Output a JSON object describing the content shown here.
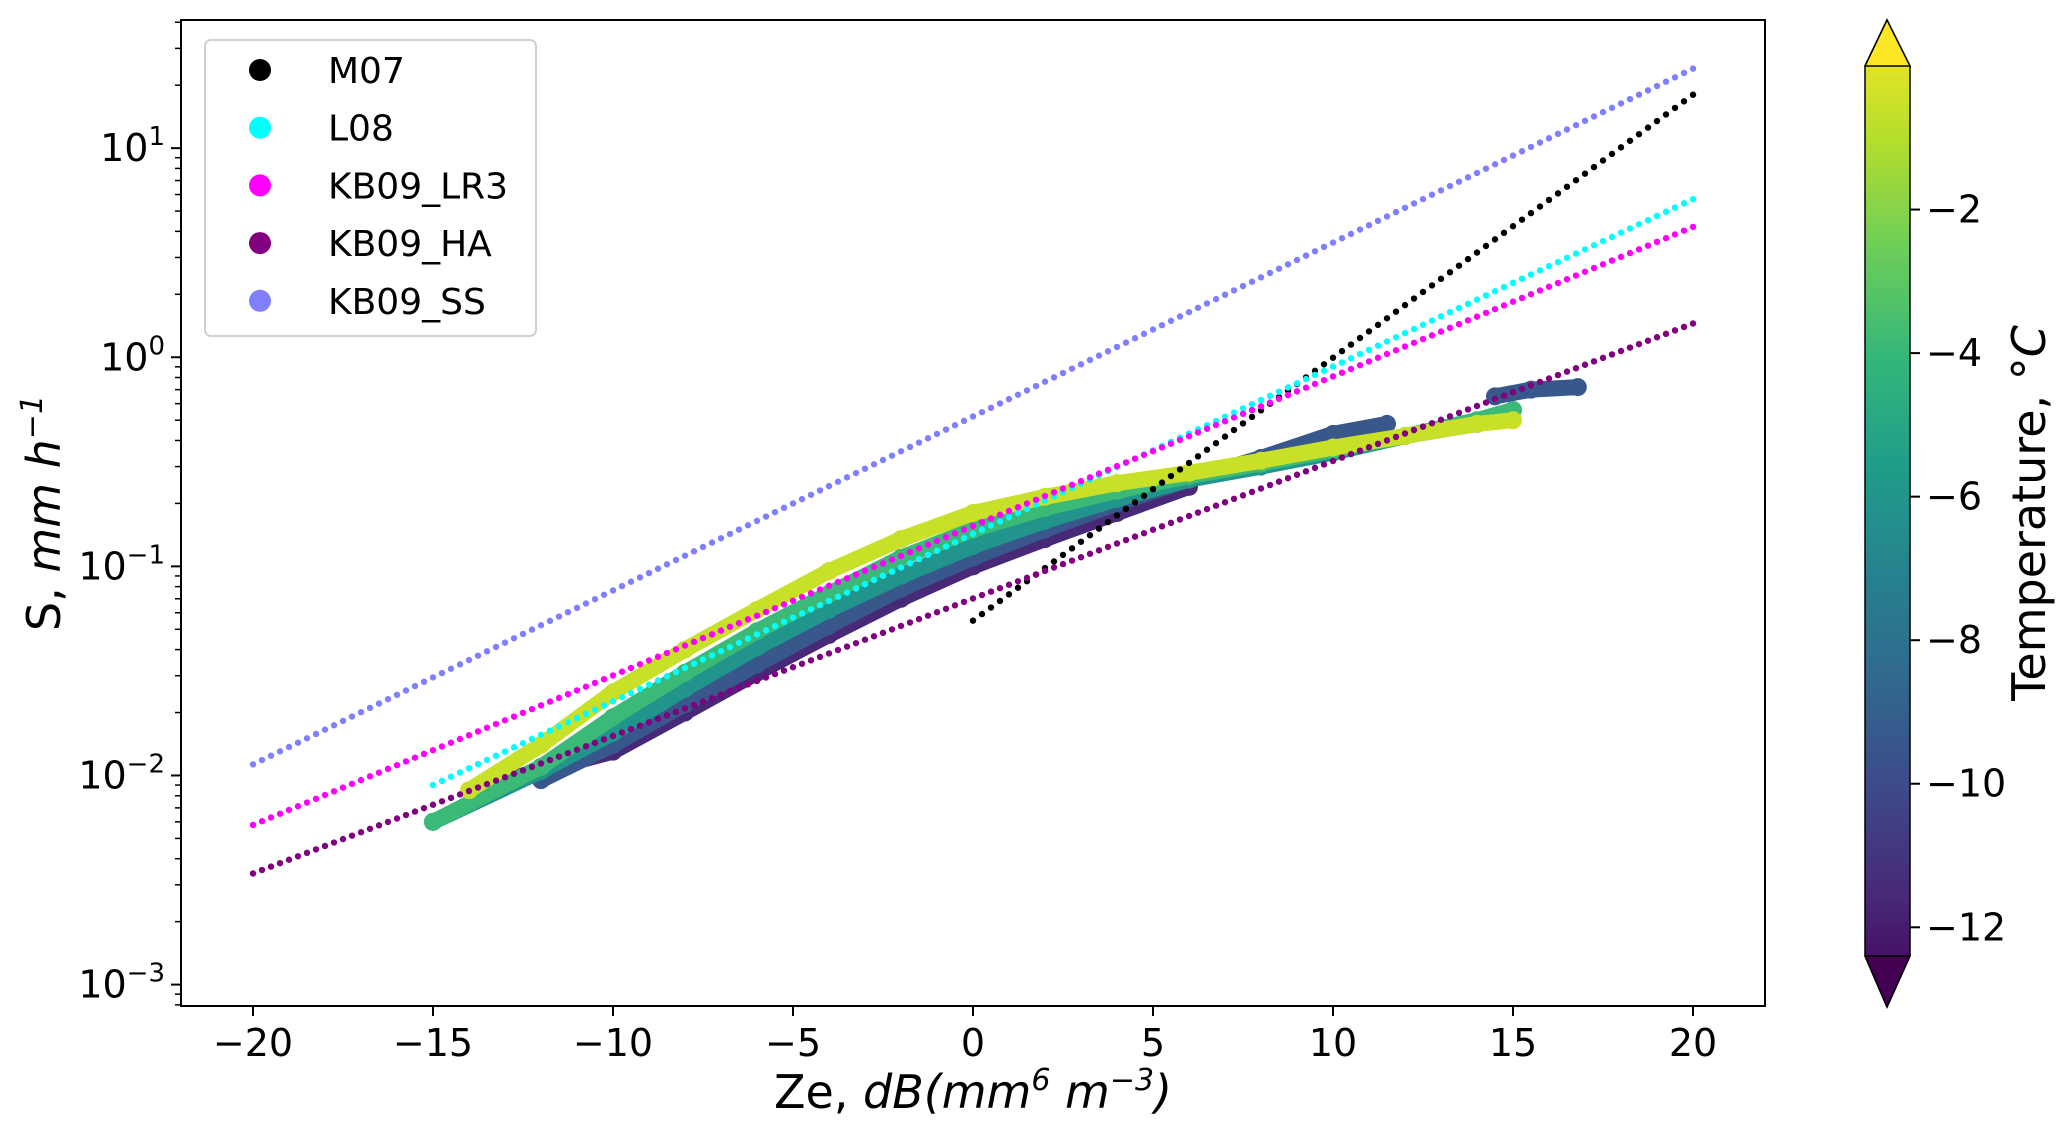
{
  "chart_data": {
    "type": "scatter",
    "xlabel": "Ze, dB(mm⁶ m⁻³)",
    "xlabel_parts": {
      "plain": "Ze, ",
      "italic": "dB(mm",
      "sup1": "6",
      "mid": " m",
      "sup2": "−3",
      "end": ")"
    },
    "ylabel": "S, mm h⁻¹",
    "ylabel_parts": {
      "plain": "S, ",
      "italic": "mm h",
      "sup": "−1"
    },
    "xlim": [
      -22,
      22
    ],
    "ylim": [
      0.00079,
      41
    ],
    "yscale": "log",
    "xticks": [
      -20,
      -15,
      -10,
      -5,
      0,
      5,
      10,
      15,
      20
    ],
    "xtick_labels": [
      "−20",
      "−15",
      "−10",
      "−5",
      "0",
      "5",
      "10",
      "15",
      "20"
    ],
    "yticks": [
      {
        "base": "10",
        "exp": "1",
        "value": 10
      },
      {
        "base": "10",
        "exp": "0",
        "value": 1
      },
      {
        "base": "10",
        "exp": "−1",
        "value": 0.1
      },
      {
        "base": "10",
        "exp": "−2",
        "value": 0.01
      },
      {
        "base": "10",
        "exp": "−3",
        "value": 0.001
      }
    ],
    "grid": false,
    "legend_position": "top-left",
    "relations": [
      {
        "name": "M07",
        "color": "#000000",
        "x_range": [
          0,
          20
        ],
        "y_at_start": 0.055,
        "y_at_end": 18
      },
      {
        "name": "L08",
        "color": "#00ffff",
        "x_range": [
          -15,
          20
        ],
        "y_at_start": 0.009,
        "y_at_end": 5.7
      },
      {
        "name": "KB09_LR3",
        "color": "#ff00ff",
        "x_range": [
          -20,
          20
        ],
        "y_at_start": 0.0058,
        "y_at_end": 4.2
      },
      {
        "name": "KB09_HA",
        "color": "#800080",
        "x_range": [
          -20,
          20
        ],
        "y_at_start": 0.0034,
        "y_at_end": 1.45
      },
      {
        "name": "KB09_SS",
        "color": "#8080ff",
        "x_range": [
          -20,
          20
        ],
        "y_at_start": 0.0113,
        "y_at_end": 24
      }
    ],
    "relation_step_dB": 0.25,
    "observations": [
      {
        "temperature": -11,
        "x": [
          -13,
          -10,
          -8,
          -6,
          -4,
          -2,
          0,
          2,
          4,
          6
        ],
        "y": [
          0.0095,
          0.013,
          0.02,
          0.031,
          0.047,
          0.07,
          0.1,
          0.135,
          0.18,
          0.24
        ]
      },
      {
        "temperature": -9,
        "x": [
          -12,
          -10,
          -8,
          -6,
          -4,
          -2,
          0,
          2,
          4,
          6,
          8,
          10,
          11.5
        ],
        "y": [
          0.0095,
          0.014,
          0.022,
          0.034,
          0.052,
          0.078,
          0.11,
          0.15,
          0.2,
          0.26,
          0.33,
          0.43,
          0.48
        ]
      },
      {
        "temperature": -6,
        "x": [
          -15,
          -12,
          -10,
          -8,
          -6,
          -4,
          -2,
          0,
          2,
          4,
          6,
          8,
          10,
          12,
          14
        ],
        "y": [
          0.006,
          0.0105,
          0.016,
          0.026,
          0.041,
          0.062,
          0.09,
          0.125,
          0.165,
          0.21,
          0.26,
          0.3,
          0.35,
          0.42,
          0.48
        ]
      },
      {
        "temperature": -4,
        "x": [
          -15,
          -12,
          -10,
          -8,
          -6,
          -4,
          -2,
          0,
          2,
          4,
          6,
          8,
          10,
          12,
          14,
          15
        ],
        "y": [
          0.006,
          0.011,
          0.019,
          0.031,
          0.049,
          0.074,
          0.11,
          0.15,
          0.19,
          0.23,
          0.27,
          0.31,
          0.36,
          0.42,
          0.5,
          0.56
        ]
      },
      {
        "temperature": -1,
        "x": [
          -14,
          -12,
          -10,
          -8,
          -6,
          -4,
          -2,
          0,
          2,
          4,
          6,
          8,
          10,
          12,
          14,
          15
        ],
        "y": [
          0.0085,
          0.014,
          0.025,
          0.04,
          0.062,
          0.095,
          0.135,
          0.18,
          0.215,
          0.25,
          0.28,
          0.32,
          0.37,
          0.42,
          0.48,
          0.5
        ]
      },
      {
        "temperature": -9,
        "x": [
          14.5,
          15.5,
          16.8
        ],
        "y": [
          0.65,
          0.7,
          0.72
        ]
      }
    ],
    "colorbar": {
      "label": "Temperature, °C",
      "label_parts": {
        "plain": "Temperature, ",
        "italic": "°C"
      },
      "colormap": "viridis",
      "range": [
        -12.4,
        0
      ],
      "extend": "both",
      "ticks": [
        -2,
        -4,
        -6,
        -8,
        -10,
        -12
      ],
      "tick_labels": [
        "−2",
        "−4",
        "−6",
        "−8",
        "−10",
        "−12"
      ]
    }
  }
}
